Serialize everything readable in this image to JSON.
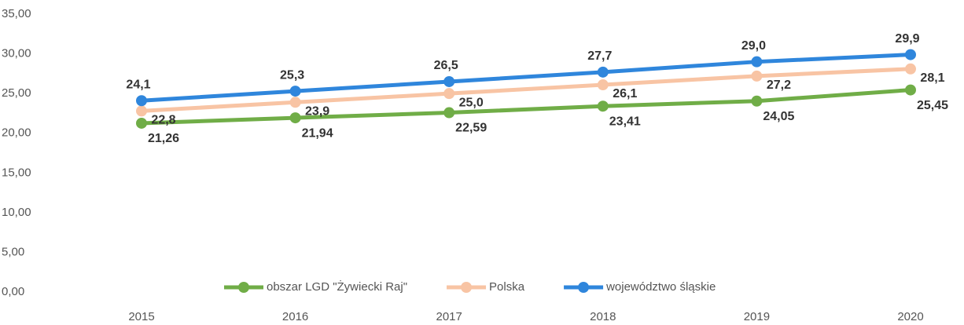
{
  "chart_data": {
    "type": "line",
    "categories": [
      "2015",
      "2016",
      "2017",
      "2018",
      "2019",
      "2020"
    ],
    "series": [
      {
        "name": "obszar LGD \"Żywiecki Raj\"",
        "color": "#70ad47",
        "values": [
          21.26,
          21.94,
          22.59,
          23.41,
          24.05,
          25.45
        ],
        "value_labels": [
          "21,26",
          "21,94",
          "22,59",
          "23,41",
          "24,05",
          "25,45"
        ]
      },
      {
        "name": "Polska",
        "color": "#f8c4a4",
        "values": [
          22.8,
          23.9,
          25.0,
          26.1,
          27.2,
          28.1
        ],
        "value_labels": [
          "22,8",
          "23,9",
          "25,0",
          "26,1",
          "27,2",
          "28,1"
        ]
      },
      {
        "name": "województwo śląskie",
        "color": "#2f86dc",
        "values": [
          24.1,
          25.3,
          26.5,
          27.7,
          29.0,
          29.9
        ],
        "value_labels": [
          "24,1",
          "25,3",
          "26,5",
          "27,7",
          "29,0",
          "29,9"
        ]
      }
    ],
    "ylim": [
      0,
      35
    ],
    "yticks": [
      {
        "value": 0,
        "label": "0,00"
      },
      {
        "value": 5,
        "label": "5,00"
      },
      {
        "value": 10,
        "label": "10,00"
      },
      {
        "value": 15,
        "label": "15,00"
      },
      {
        "value": 20,
        "label": "20,00"
      },
      {
        "value": 25,
        "label": "25,00"
      },
      {
        "value": 30,
        "label": "30,00"
      },
      {
        "value": 35,
        "label": "35,00"
      }
    ],
    "legend": "bottom"
  }
}
